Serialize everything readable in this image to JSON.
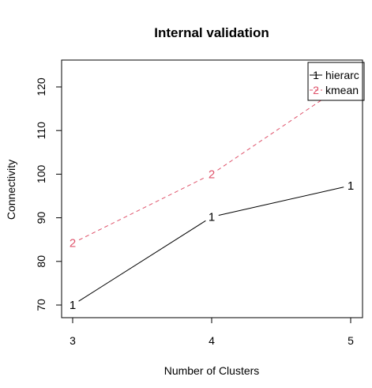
{
  "chart_data": {
    "type": "line",
    "title": "Internal validation",
    "xlabel": "Number of Clusters",
    "ylabel": "Connectivity",
    "categories": [
      "3",
      "4",
      "5"
    ],
    "x": [
      3,
      4,
      5
    ],
    "xlim": [
      3,
      5
    ],
    "ylim": [
      67.5,
      125
    ],
    "yticks": [
      70,
      80,
      90,
      100,
      110,
      120
    ],
    "grid": false,
    "legend_position": "top-right",
    "series": [
      {
        "name": "hierarchical",
        "legend_label": "hierarc",
        "marker": "1",
        "color": "#000000",
        "line_style": "solid",
        "values": [
          70.0,
          90.2,
          97.4
        ]
      },
      {
        "name": "kmeans",
        "legend_label": "kmean",
        "marker": "2",
        "color": "#DF536B",
        "line_style": "dashed",
        "values": [
          84.2,
          100.0,
          121.5
        ]
      }
    ]
  }
}
